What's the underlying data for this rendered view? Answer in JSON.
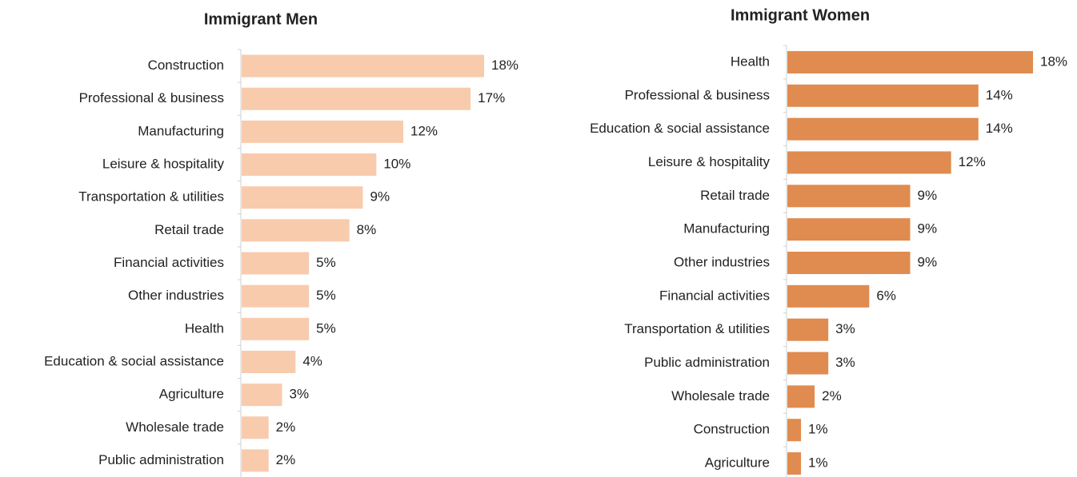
{
  "chart_data": [
    {
      "type": "bar",
      "orientation": "horizontal",
      "title": "Immigrant Men",
      "color": "#f8cbad",
      "categories": [
        "Construction",
        "Professional & business",
        "Manufacturing",
        "Leisure & hospitality",
        "Transportation & utilities",
        "Retail trade",
        "Financial activities",
        "Other industries",
        "Health",
        "Education & social assistance",
        "Agriculture",
        "Wholesale trade",
        "Public administration"
      ],
      "values": [
        18,
        17,
        12,
        10,
        9,
        8,
        5,
        5,
        5,
        4,
        3,
        2,
        2
      ],
      "value_labels": [
        "18%",
        "17%",
        "12%",
        "10%",
        "9%",
        "8%",
        "5%",
        "5%",
        "5%",
        "4%",
        "3%",
        "2%",
        "2%"
      ]
    },
    {
      "type": "bar",
      "orientation": "horizontal",
      "title": "Immigrant Women",
      "color": "#e08b4f",
      "categories": [
        "Health",
        "Professional & business",
        "Education & social assistance",
        "Leisure & hospitality",
        "Retail trade",
        "Manufacturing",
        "Other industries",
        "Financial activities",
        "Transportation & utilities",
        "Public administration",
        "Wholesale trade",
        "Construction",
        "Agriculture"
      ],
      "values": [
        18,
        14,
        14,
        12,
        9,
        9,
        9,
        6,
        3,
        3,
        2,
        1,
        1
      ],
      "value_labels": [
        "18%",
        "14%",
        "14%",
        "12%",
        "9%",
        "9%",
        "9%",
        "6%",
        "3%",
        "3%",
        "2%",
        "1%",
        "1%"
      ]
    }
  ]
}
